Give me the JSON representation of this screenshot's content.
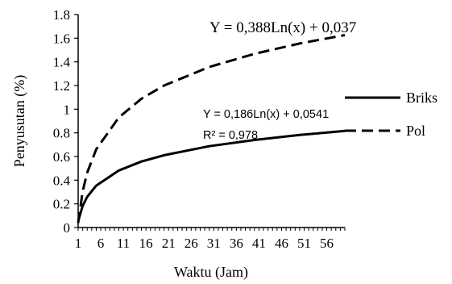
{
  "chart_data": {
    "type": "line",
    "xlabel": "Waktu (Jam)",
    "ylabel": "Penyusutan (%)",
    "xlim": [
      1,
      60
    ],
    "ylim": [
      0,
      1.8
    ],
    "x_ticks": [
      "1",
      "6",
      "11",
      "16",
      "21",
      "26",
      "31",
      "36",
      "41",
      "46",
      "51",
      "56"
    ],
    "y_ticks": [
      "0",
      "0.2",
      "0.4",
      "0.6",
      "0.8",
      "1",
      "1.2",
      "1.4",
      "1.6",
      "1.8"
    ],
    "grid": false,
    "legend_position": "right",
    "series": [
      {
        "name": "Briks",
        "style": "solid",
        "equation": "Y = 0,186Ln(x) + 0,0541",
        "r2": "R² = 0,978",
        "x": [
          1,
          2,
          3,
          5,
          10,
          15,
          20,
          30,
          40,
          50,
          60
        ],
        "y": [
          0.054,
          0.183,
          0.259,
          0.354,
          0.482,
          0.558,
          0.611,
          0.687,
          0.74,
          0.782,
          0.816
        ]
      },
      {
        "name": "Pol",
        "style": "dashed",
        "equation": "Y = 0,388Ln(x) + 0,037",
        "x": [
          1,
          2,
          3,
          5,
          10,
          15,
          20,
          30,
          40,
          50,
          60
        ],
        "y": [
          0.037,
          0.306,
          0.463,
          0.661,
          0.93,
          1.088,
          1.2,
          1.357,
          1.468,
          1.555,
          1.626
        ]
      }
    ]
  }
}
